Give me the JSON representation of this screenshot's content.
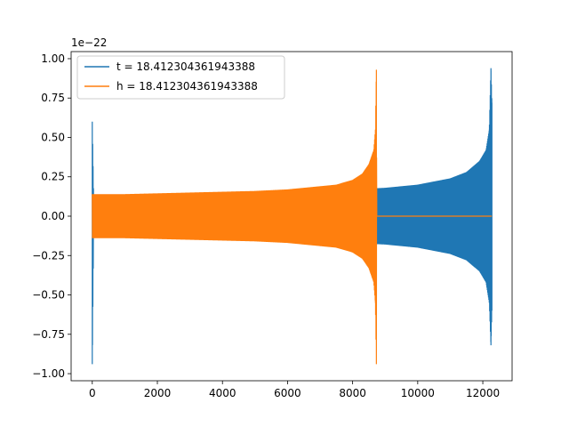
{
  "chart_data": {
    "type": "line",
    "title": "",
    "xlabel": "",
    "ylabel": "",
    "offset_text": "1e−22",
    "xlim": [
      -650,
      12900
    ],
    "ylim": [
      -1.045,
      1.045
    ],
    "xticks": [
      0,
      2000,
      4000,
      6000,
      8000,
      10000,
      12000
    ],
    "xtick_labels": [
      "0",
      "2000",
      "4000",
      "6000",
      "8000",
      "10000",
      "12000"
    ],
    "yticks": [
      -1.0,
      -0.75,
      -0.5,
      -0.25,
      0.0,
      0.25,
      0.5,
      0.75,
      1.0
    ],
    "ytick_labels": [
      "−1.00",
      "−0.75",
      "−0.50",
      "−0.25",
      "0.00",
      "0.25",
      "0.50",
      "0.75",
      "1.00"
    ],
    "grid": false,
    "legend_position": "upper-left",
    "series": [
      {
        "name": "t = 18.412304361943388",
        "color": "#1f77b4",
        "x_range": [
          0,
          12280
        ],
        "envelope_x": [
          0,
          40,
          2000,
          4000,
          6000,
          8000,
          9000,
          10000,
          11000,
          11500,
          11900,
          12100,
          12200,
          12250,
          12280
        ],
        "envelope_upper": [
          0.6,
          0.13,
          0.14,
          0.15,
          0.16,
          0.17,
          0.18,
          0.2,
          0.24,
          0.28,
          0.35,
          0.42,
          0.55,
          0.94,
          0.72
        ],
        "envelope_lower": [
          -0.94,
          -0.13,
          -0.14,
          -0.15,
          -0.16,
          -0.17,
          -0.18,
          -0.2,
          -0.24,
          -0.28,
          -0.35,
          -0.42,
          -0.55,
          -0.82,
          -0.6
        ]
      },
      {
        "name": "h = 18.412304361943388",
        "color": "#ff7f0e",
        "x_range": [
          0,
          12280
        ],
        "envelope_x": [
          0,
          40,
          1000,
          2000,
          3000,
          4000,
          5000,
          6000,
          7000,
          7500,
          8000,
          8300,
          8500,
          8650,
          8700,
          8730,
          8740,
          12280
        ],
        "envelope_upper": [
          0.14,
          0.14,
          0.14,
          0.145,
          0.15,
          0.155,
          0.16,
          0.17,
          0.19,
          0.2,
          0.23,
          0.27,
          0.33,
          0.42,
          0.55,
          0.93,
          0.0,
          0.0
        ],
        "envelope_lower": [
          -0.14,
          -0.14,
          -0.14,
          -0.145,
          -0.15,
          -0.155,
          -0.16,
          -0.17,
          -0.19,
          -0.2,
          -0.23,
          -0.27,
          -0.33,
          -0.42,
          -0.55,
          -0.94,
          0.0,
          0.0
        ]
      }
    ]
  }
}
